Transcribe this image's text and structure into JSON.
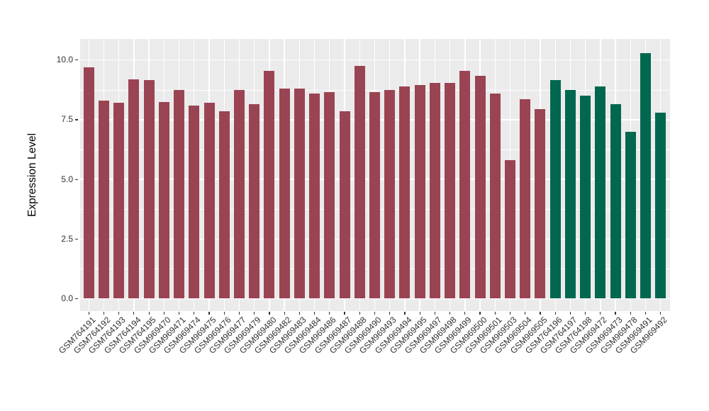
{
  "figure": {
    "background": "#FFFFFF",
    "panel_background": "#EBEBEB",
    "grid_color": "#FFFFFF",
    "tick_mark_color": "#333333",
    "tick_label_color": "#303030",
    "axis_title_color": "#000000"
  },
  "chart_data": {
    "type": "bar",
    "title": "",
    "xlabel": "",
    "ylabel": "Expression Level",
    "ylim": [
      0,
      10.86
    ],
    "grid": "on",
    "legend": "none",
    "yticks": [
      {
        "value": 0.0,
        "label": "0.0"
      },
      {
        "value": 2.5,
        "label": "2.5"
      },
      {
        "value": 5.0,
        "label": "5.0"
      },
      {
        "value": 7.5,
        "label": "7.5"
      },
      {
        "value": 10.0,
        "label": "10.0"
      }
    ],
    "minor_yticks": [
      1.25,
      3.75,
      6.25,
      8.75
    ],
    "palette": {
      "red": "#9A4453",
      "green": "#02674F"
    },
    "categories": [
      "GSM764191",
      "GSM764192",
      "GSM764193",
      "GSM764194",
      "GSM764195",
      "GSM969470",
      "GSM969471",
      "GSM969474",
      "GSM969475",
      "GSM969476",
      "GSM969477",
      "GSM969479",
      "GSM969480",
      "GSM969482",
      "GSM969483",
      "GSM969484",
      "GSM969486",
      "GSM969487",
      "GSM969488",
      "GSM969490",
      "GSM969493",
      "GSM969494",
      "GSM969495",
      "GSM969497",
      "GSM969498",
      "GSM969499",
      "GSM969500",
      "GSM969501",
      "GSM969503",
      "GSM969504",
      "GSM969505",
      "GSM764196",
      "GSM764197",
      "GSM764198",
      "GSM969472",
      "GSM969473",
      "GSM969478",
      "GSM969491",
      "GSM969492"
    ],
    "values": [
      9.7,
      8.3,
      8.2,
      9.2,
      9.15,
      8.25,
      8.75,
      8.1,
      8.2,
      7.85,
      8.75,
      8.15,
      9.55,
      8.8,
      8.8,
      8.6,
      8.65,
      7.85,
      9.75,
      8.65,
      8.75,
      8.9,
      8.95,
      9.05,
      9.05,
      9.55,
      9.35,
      8.6,
      5.8,
      8.35,
      7.95,
      9.15,
      8.75,
      8.5,
      8.9,
      8.15,
      7.0,
      10.3,
      7.8
    ],
    "groups": [
      "red",
      "red",
      "red",
      "red",
      "red",
      "red",
      "red",
      "red",
      "red",
      "red",
      "red",
      "red",
      "red",
      "red",
      "red",
      "red",
      "red",
      "red",
      "red",
      "red",
      "red",
      "red",
      "red",
      "red",
      "red",
      "red",
      "red",
      "red",
      "red",
      "red",
      "red",
      "green",
      "green",
      "green",
      "green",
      "green",
      "green",
      "green",
      "green"
    ]
  }
}
